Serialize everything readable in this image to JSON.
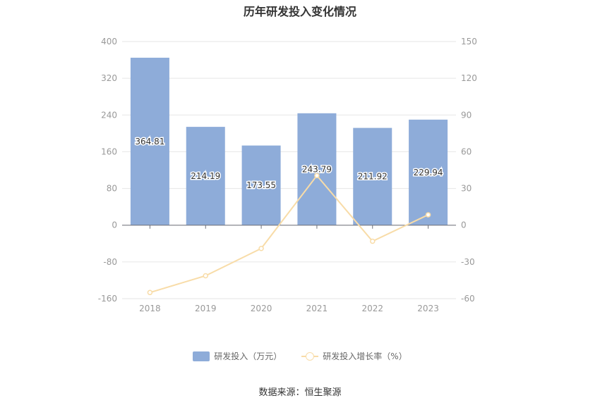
{
  "chart_data": {
    "type": "bar",
    "title": "历年研发投入变化情况",
    "categories": [
      "2018",
      "2019",
      "2020",
      "2021",
      "2022",
      "2023"
    ],
    "series": [
      {
        "name": "研发投入（万元）",
        "type": "bar",
        "axis": "left",
        "values": [
          364.81,
          214.19,
          173.55,
          243.79,
          211.92,
          229.94
        ],
        "labels": [
          "364.81",
          "214.19",
          "173.55",
          "243.79",
          "211.92",
          "229.94"
        ],
        "color": "#8eacd9"
      },
      {
        "name": "研发投入增长率（%）",
        "type": "line",
        "axis": "right",
        "values": [
          -55.0,
          -41.3,
          -19.0,
          40.5,
          -13.1,
          8.5
        ],
        "color": "#f8dca8"
      }
    ],
    "left_axis": {
      "ylim": [
        -160,
        400
      ],
      "ticks": [
        "400",
        "320",
        "240",
        "160",
        "80",
        "0",
        "-80",
        "-160"
      ]
    },
    "right_axis": {
      "ylim": [
        -60,
        150
      ],
      "ticks": [
        "150",
        "120",
        "90",
        "60",
        "30",
        "0",
        "-30",
        "-60"
      ]
    },
    "grid": true,
    "legend_position": "bottom"
  },
  "legend": {
    "bar_label": "研发投入（万元）",
    "line_label": "研发投入增长率（%）"
  },
  "source": "数据来源：恒生聚源"
}
